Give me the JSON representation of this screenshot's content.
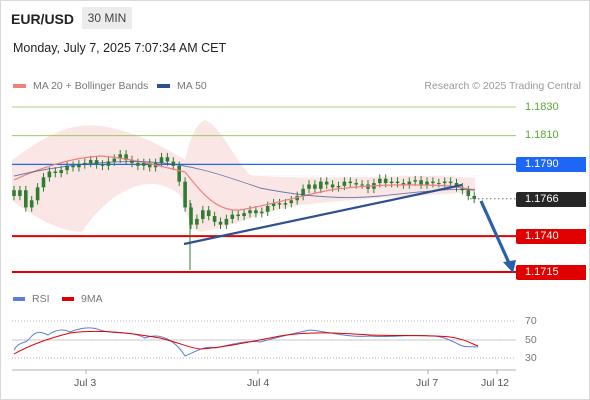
{
  "header": {
    "symbol": "EUR/USD",
    "timeframe": "30 MIN",
    "timestamp": "Monday, July 7, 2025 7:07:34 AM CET"
  },
  "legend": {
    "ma20_label": "MA 20 + Bollinger Bands",
    "ma50_label": "MA 50",
    "copyright": "Research © 2025 Trading Central"
  },
  "colors": {
    "ma20": "#f08080",
    "ma50": "#2f4f8f",
    "bollinger_fill": "#fbe3e3",
    "candle": "#2e7d32",
    "resistance_green": "#8bc34a",
    "pivot_blue": "#1e66f5",
    "support_red": "#e10000",
    "trendline": "#2f4f8f",
    "arrow": "#2b5fa8",
    "rsi": "#5b7fd6",
    "rsi_ma": "#e10000"
  },
  "levels": [
    {
      "value": "1.1830",
      "style": "green"
    },
    {
      "value": "1.1810",
      "style": "green"
    },
    {
      "value": "1.1790",
      "style": "blue"
    },
    {
      "value": "1.1766",
      "style": "dark"
    },
    {
      "value": "1.1740",
      "style": "red"
    },
    {
      "value": "1.1715",
      "style": "red"
    }
  ],
  "rsi_panel": {
    "rsi_label": "RSI",
    "ma_label": "9MA",
    "ticks": [
      "70",
      "50",
      "30"
    ]
  },
  "x_axis": {
    "labels": [
      "Jul 3",
      "Jul 4",
      "Jul 7",
      "Jul 12"
    ]
  },
  "chart_data": {
    "type": "candlestick",
    "instrument": "EUR/USD",
    "interval": "30 MIN",
    "ylim": [
      1.1708,
      1.1838
    ],
    "key_levels": [
      1.183,
      1.181,
      1.179,
      1.1766,
      1.174,
      1.1715
    ],
    "closes": [
      1.1768,
      1.1772,
      1.176,
      1.1765,
      1.1774,
      1.1781,
      1.1785,
      1.1784,
      1.1786,
      1.1789,
      1.1788,
      1.179,
      1.1791,
      1.1793,
      1.179,
      1.1789,
      1.1792,
      1.1794,
      1.1797,
      1.1793,
      1.1791,
      1.1789,
      1.1791,
      1.1788,
      1.1791,
      1.1795,
      1.1792,
      1.1789,
      1.1778,
      1.176,
      1.1748,
      1.1752,
      1.1758,
      1.1754,
      1.175,
      1.1748,
      1.1752,
      1.1755,
      1.1754,
      1.1756,
      1.1758,
      1.1756,
      1.1757,
      1.1761,
      1.1763,
      1.1762,
      1.1763,
      1.1765,
      1.1768,
      1.1773,
      1.1776,
      1.1773,
      1.1778,
      1.1776,
      1.1774,
      1.1775,
      1.1778,
      1.1777,
      1.1776,
      1.1776,
      1.1773,
      1.1777,
      1.178,
      1.1777,
      1.1778,
      1.1777,
      1.1776,
      1.1778,
      1.1779,
      1.1776,
      1.1778,
      1.1777,
      1.1777,
      1.1778,
      1.1777,
      1.1774,
      1.1772,
      1.1768,
      1.1766
    ],
    "rsi_ticks": [
      70,
      50,
      30
    ]
  }
}
